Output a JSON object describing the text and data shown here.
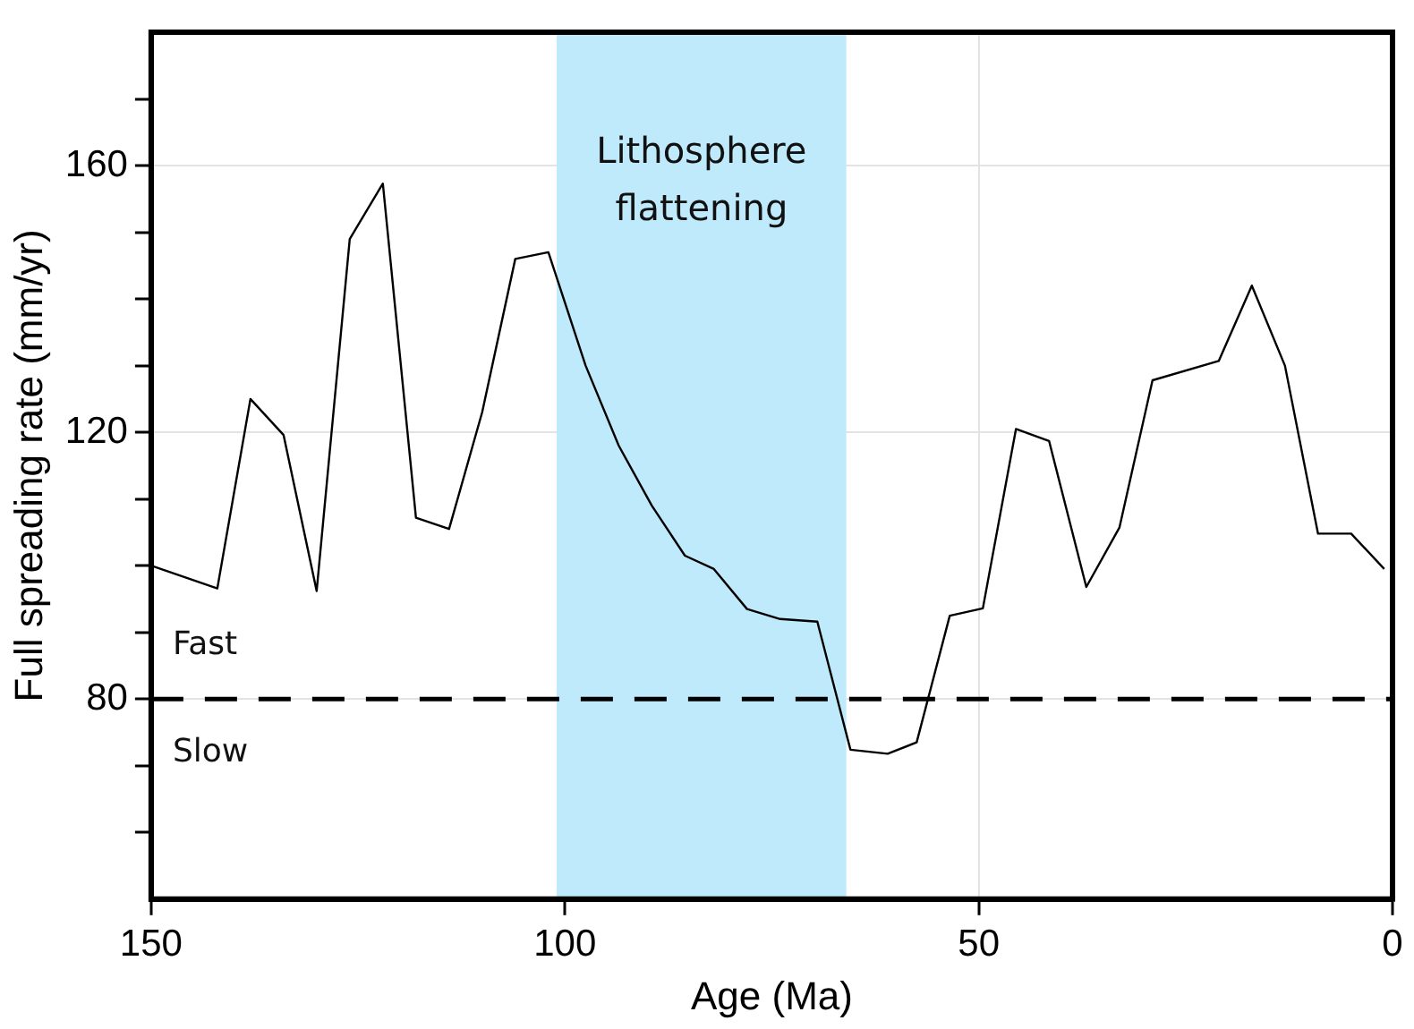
{
  "chart_data": {
    "type": "line",
    "xlabel": "Age (Ma)",
    "ylabel": "Full spreading rate (mm/yr)",
    "x": [
      150,
      142,
      138,
      134,
      130,
      126,
      122,
      118,
      114,
      110,
      106,
      102,
      97.5,
      93.5,
      89.5,
      85.5,
      82,
      78,
      74,
      69.5,
      65.5,
      61,
      57.5,
      53.5,
      49.5,
      45.5,
      41.5,
      37,
      33,
      29,
      21,
      17,
      13,
      9,
      5,
      1
    ],
    "series": [
      {
        "color": "#000000",
        "values": [
          100,
          96.6,
          125,
          119.6,
          96.2,
          149,
          157.3,
          107.2,
          105.5,
          123,
          146,
          147,
          130,
          118,
          109,
          101.5,
          99.5,
          93.5,
          92,
          91.6,
          72.4,
          71.8,
          73.5,
          92.5,
          93.6,
          120.5,
          118.7,
          96.8,
          105.7,
          127.8,
          130.7,
          142,
          130,
          104.8,
          104.8,
          99.5
        ]
      }
    ],
    "xlim": [
      150,
      0
    ],
    "xticks": [
      150,
      100,
      50,
      0
    ],
    "ylim": [
      50,
      180
    ],
    "yticks": [
      {
        "value": 60,
        "label": null
      },
      {
        "value": 70,
        "label": null
      },
      80,
      {
        "value": 90,
        "label": null
      },
      {
        "value": 100,
        "label": null
      },
      {
        "value": 110,
        "label": null
      },
      120,
      {
        "value": 130,
        "label": null
      },
      {
        "value": 140,
        "label": null
      },
      {
        "value": 150,
        "label": null
      },
      160,
      {
        "value": 170,
        "label": null
      }
    ],
    "grid": true,
    "marker": "none",
    "line_style": "solid",
    "ref_lines": [
      {
        "axis": "y",
        "value": 80,
        "color": "#000000",
        "line_style": "dashed"
      }
    ],
    "bands": [
      {
        "axis": "x",
        "from": 101,
        "to": 66,
        "label": "Lithosphere flattening",
        "color": "#bfeafb"
      }
    ],
    "annotations": [
      "Fast",
      "Slow"
    ]
  }
}
